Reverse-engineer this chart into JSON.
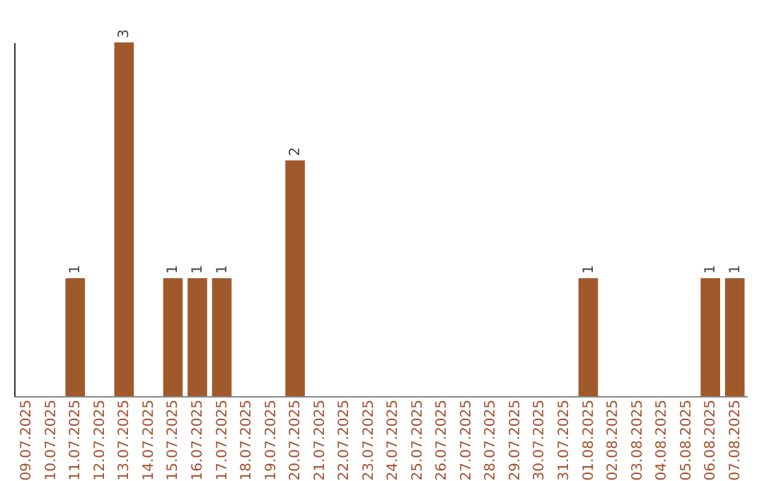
{
  "chart_data": {
    "type": "bar",
    "categories": [
      "09.07.2025",
      "10.07.2025",
      "11.07.2025",
      "12.07.2025",
      "13.07.2025",
      "14.07.2025",
      "15.07.2025",
      "16.07.2025",
      "17.07.2025",
      "18.07.2025",
      "19.07.2025",
      "20.07.2025",
      "21.07.2025",
      "22.07.2025",
      "23.07.2025",
      "24.07.2025",
      "25.07.2025",
      "26.07.2025",
      "27.07.2025",
      "28.07.2025",
      "29.07.2025",
      "30.07.2025",
      "31.07.2025",
      "01.08.2025",
      "02.08.2025",
      "03.08.2025",
      "04.08.2025",
      "05.08.2025",
      "06.08.2025",
      "07.08.2025"
    ],
    "values": [
      0,
      0,
      1,
      0,
      3,
      0,
      1,
      1,
      1,
      0,
      0,
      2,
      0,
      0,
      0,
      0,
      0,
      0,
      0,
      0,
      0,
      0,
      0,
      1,
      0,
      0,
      0,
      0,
      1,
      1
    ],
    "value_labels": [
      null,
      null,
      "1",
      null,
      "3",
      null,
      "1",
      "1",
      "1",
      null,
      null,
      "2",
      null,
      null,
      null,
      null,
      null,
      null,
      null,
      null,
      null,
      null,
      null,
      "1",
      null,
      null,
      null,
      null,
      "1",
      "1"
    ],
    "color": "#a0592b",
    "tick_labels": "x"
  }
}
